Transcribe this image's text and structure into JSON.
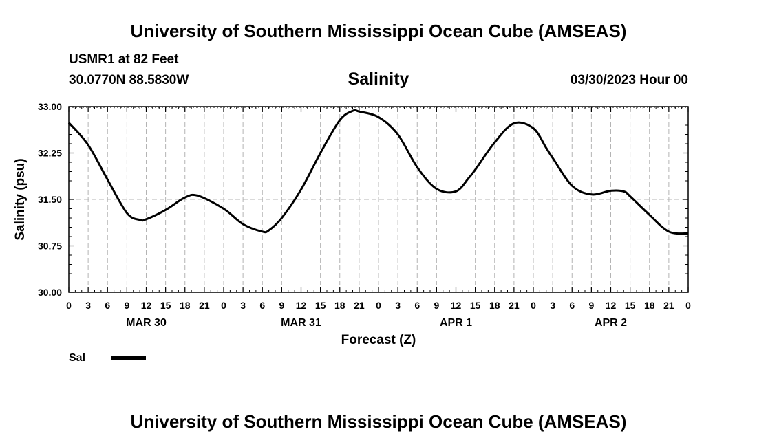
{
  "header": {
    "title": "University of Southern Mississippi Ocean Cube (AMSEAS)",
    "station": "USMR1 at 82 Feet",
    "coordinates": "30.0770N  88.5830W",
    "datestamp": "03/30/2023 Hour 00"
  },
  "footer": {
    "title": "University of Southern Mississippi Ocean Cube (AMSEAS)"
  },
  "chart_data": {
    "type": "line",
    "title": "Salinity",
    "xlabel": "Forecast (Z)",
    "ylabel": "Salinity (psu)",
    "xlim": [
      0,
      96
    ],
    "ylim": [
      30.0,
      33.0
    ],
    "grid": true,
    "y_ticks": [
      30.0,
      30.75,
      31.5,
      32.25,
      33.0
    ],
    "y_tick_labels": [
      "30.00",
      "30.75",
      "31.50",
      "32.25",
      "33.00"
    ],
    "x_tick_hours": [
      0,
      3,
      6,
      9,
      12,
      15,
      18,
      21,
      24,
      27,
      30,
      33,
      36,
      39,
      42,
      45,
      48,
      51,
      54,
      57,
      60,
      63,
      66,
      69,
      72,
      75,
      78,
      81,
      84,
      87,
      90,
      93,
      96
    ],
    "x_tick_labels": [
      "0",
      "3",
      "6",
      "9",
      "12",
      "15",
      "18",
      "21",
      "0",
      "3",
      "6",
      "9",
      "12",
      "15",
      "18",
      "21",
      "0",
      "3",
      "6",
      "9",
      "12",
      "15",
      "18",
      "21",
      "0",
      "3",
      "6",
      "9",
      "12",
      "15",
      "18",
      "21",
      "0"
    ],
    "day_labels": [
      {
        "label": "MAR 30",
        "hour": 12
      },
      {
        "label": "MAR 31",
        "hour": 36
      },
      {
        "label": "APR 1",
        "hour": 60
      },
      {
        "label": "APR 2",
        "hour": 84
      }
    ],
    "legend": {
      "position": "bottom-left",
      "entries": [
        "Sal"
      ]
    },
    "series": [
      {
        "name": "Sal",
        "x": [
          0,
          3,
          6,
          9,
          11,
          12,
          15,
          18,
          20,
          24,
          27,
          30,
          31,
          33,
          36,
          39,
          42,
          44,
          45,
          48,
          51,
          54,
          57,
          60,
          62,
          63,
          66,
          69,
          72,
          74,
          75,
          78,
          81,
          84,
          86,
          87,
          90,
          93,
          96
        ],
        "y": [
          32.74,
          32.38,
          31.82,
          31.28,
          31.17,
          31.18,
          31.33,
          31.53,
          31.56,
          31.35,
          31.1,
          30.98,
          31.0,
          31.2,
          31.66,
          32.25,
          32.78,
          32.93,
          32.92,
          32.83,
          32.55,
          32.02,
          31.67,
          31.63,
          31.85,
          31.98,
          32.42,
          32.73,
          32.65,
          32.33,
          32.17,
          31.72,
          31.58,
          31.64,
          31.63,
          31.55,
          31.25,
          30.98,
          30.95
        ]
      }
    ]
  }
}
